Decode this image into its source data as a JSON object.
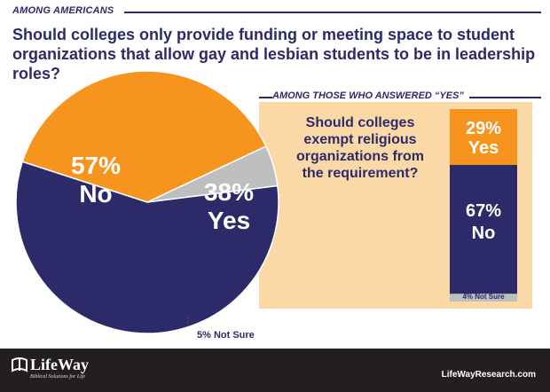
{
  "header": {
    "label": "AMONG AMERICANS",
    "question": "Should colleges only provide funding or meeting space to student organizations that allow gay and lesbian students to be in leadership roles?"
  },
  "subpanel": {
    "label": "AMONG THOSE WHO ANSWERED “YES”",
    "question": "Should colleges exempt religious organizations from the requirement?"
  },
  "footer": {
    "logo": "LifeWay",
    "tagline": "Biblical Solutions for Life",
    "url": "LifeWayResearch.com"
  },
  "colors": {
    "navy": "#2d2a69",
    "orange": "#f7941d",
    "gray": "#bcbec0",
    "panel": "#fbd9a6"
  },
  "chart_data": [
    {
      "type": "pie",
      "title": "",
      "slices": [
        {
          "label": "No",
          "value": 57,
          "display_pct": "57%",
          "display_label": "No",
          "color": "#2d2a69"
        },
        {
          "label": "Yes",
          "value": 38,
          "display_pct": "38%",
          "display_label": "Yes",
          "color": "#f7941d"
        },
        {
          "label": "Not Sure",
          "value": 5,
          "display": "5% Not Sure",
          "color": "#bcbec0"
        }
      ]
    },
    {
      "type": "bar",
      "stacked": true,
      "title": "",
      "segments": [
        {
          "label": "Yes",
          "value": 29,
          "display_pct": "29%",
          "display_label": "Yes",
          "color": "#f7941d"
        },
        {
          "label": "No",
          "value": 67,
          "display_pct": "67%",
          "display_label": "No",
          "color": "#2d2a69"
        },
        {
          "label": "Not Sure",
          "value": 4,
          "display": "4% Not Sure",
          "color": "#bcbec0"
        }
      ]
    }
  ]
}
